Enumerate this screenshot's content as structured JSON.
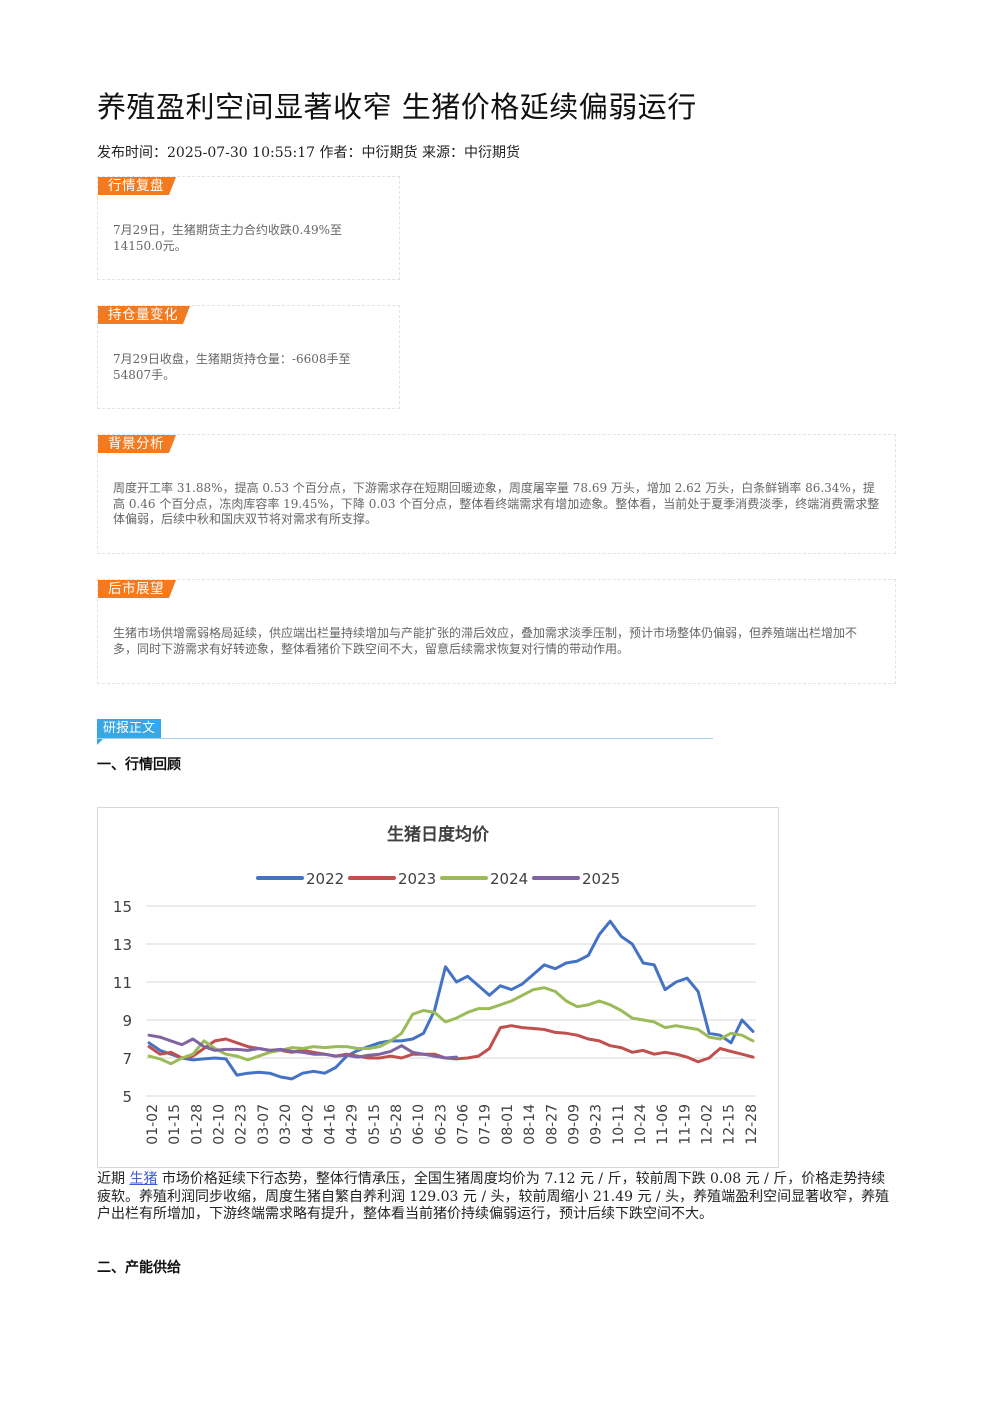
{
  "article": {
    "title": "养殖盈利空间显著收窄 生猪价格延续偏弱运行",
    "meta": "发布时间：2025-07-30 10:55:17 作者：中衍期货 来源：中衍期货"
  },
  "sections": {
    "review": {
      "tag": "行情复盘",
      "text": "7月29日，生猪期货主力合约收跌0.49%至14150.0元。"
    },
    "position": {
      "tag": "持仓量变化",
      "text": "7月29日收盘，生猪期货持仓量：-6608手至54807手。"
    },
    "background": {
      "tag": "背景分析",
      "text": "周度开工率 31.88%，提高 0.53 个百分点，下游需求存在短期回暖迹象，周度屠宰量 78.69 万头，增加 2.62 万头，白条鲜销率 86.34%，提高 0.46 个百分点，冻肉库容率 19.45%，下降 0.03 个百分点，整体看终端需求有增加迹象。整体看，当前处于夏季消费淡季，终端消费需求整体偏弱，后续中秋和国庆双节将对需求有所支撑。"
    },
    "outlook": {
      "tag": "后市展望",
      "text": "生猪市场供增需弱格局延续，供应端出栏量持续增加与产能扩张的滞后效应，叠加需求淡季压制，预计市场整体仍偏弱，但养殖端出栏增加不多，同时下游需求有好转迹象，整体看猪价下跌空间不大，留意后续需求恢复对行情的带动作用。"
    }
  },
  "report": {
    "tag": "研报正文",
    "heading1": "一、行情回顾",
    "para_prefix": "近期 ",
    "para_link": "生猪",
    "para_rest": " 市场价格延续下行态势，整体行情承压，全国生猪周度均价为 7.12 元 / 斤，较前周下跌 0.08 元 / 斤，价格走势持续疲软。养殖利润同步收缩，周度生猪自繁自养利润 129.03 元 / 头，较前周缩小 21.49 元 / 头，养殖端盈利空间显著收窄，养殖户出栏有所增加，下游终端需求略有提升，整体看当前猪价持续偏弱运行，预计后续下跌空间不大。",
    "heading2": "二、产能供给"
  },
  "chart_data": {
    "type": "line",
    "title": "生猪日度均价",
    "ylim": [
      5,
      15
    ],
    "yticks": [
      5,
      7,
      9,
      11,
      13,
      15
    ],
    "xticks": [
      "01-02",
      "01-15",
      "01-28",
      "02-10",
      "02-23",
      "03-07",
      "03-20",
      "04-02",
      "04-16",
      "04-29",
      "05-15",
      "05-28",
      "06-10",
      "06-23",
      "07-06",
      "07-19",
      "08-01",
      "08-14",
      "08-27",
      "09-09",
      "09-23",
      "10-11",
      "10-24",
      "11-06",
      "11-19",
      "12-02",
      "12-15",
      "12-28"
    ],
    "legend_position": "top",
    "grid": true,
    "series": [
      {
        "name": "2022",
        "color": "#4472c4",
        "values": [
          7.8,
          7.4,
          7.2,
          7.0,
          6.9,
          6.95,
          7.0,
          6.95,
          6.1,
          6.2,
          6.25,
          6.2,
          6.0,
          5.9,
          6.2,
          6.3,
          6.2,
          6.5,
          7.1,
          7.4,
          7.6,
          7.8,
          7.9,
          7.9,
          8.0,
          8.3,
          9.5,
          11.8,
          11.0,
          11.3,
          10.8,
          10.3,
          10.8,
          10.6,
          10.9,
          11.4,
          11.9,
          11.7,
          12.0,
          12.1,
          12.4,
          13.5,
          14.2,
          13.4,
          13.0,
          12.0,
          11.9,
          10.6,
          11.0,
          11.2,
          10.5,
          8.3,
          8.2,
          7.8,
          9.0,
          8.4
        ]
      },
      {
        "name": "2023",
        "color": "#c0504d",
        "values": [
          7.6,
          7.2,
          7.3,
          7.0,
          7.1,
          7.5,
          7.9,
          8.0,
          7.8,
          7.6,
          7.5,
          7.4,
          7.4,
          7.3,
          7.4,
          7.3,
          7.2,
          7.1,
          7.2,
          7.1,
          7.0,
          7.0,
          7.1,
          7.0,
          7.2,
          7.2,
          7.2,
          7.0,
          6.95,
          7.0,
          7.1,
          7.5,
          8.6,
          8.7,
          8.6,
          8.55,
          8.5,
          8.35,
          8.3,
          8.2,
          8.0,
          7.9,
          7.65,
          7.55,
          7.3,
          7.4,
          7.2,
          7.3,
          7.2,
          7.05,
          6.8,
          7.0,
          7.5,
          7.35,
          7.2,
          7.05
        ]
      },
      {
        "name": "2024",
        "color": "#9bbb59",
        "values": [
          7.1,
          6.95,
          6.7,
          7.0,
          7.2,
          7.9,
          7.5,
          7.2,
          7.1,
          6.9,
          7.1,
          7.3,
          7.4,
          7.55,
          7.5,
          7.6,
          7.55,
          7.6,
          7.6,
          7.5,
          7.5,
          7.6,
          7.9,
          8.3,
          9.3,
          9.5,
          9.4,
          8.9,
          9.1,
          9.4,
          9.6,
          9.6,
          9.8,
          10.0,
          10.3,
          10.6,
          10.7,
          10.5,
          10.0,
          9.7,
          9.8,
          10.0,
          9.8,
          9.5,
          9.1,
          9.0,
          8.9,
          8.6,
          8.7,
          8.6,
          8.5,
          8.1,
          8.0,
          8.3,
          8.2,
          7.9
        ]
      },
      {
        "name": "2025",
        "color": "#8064a2",
        "values": [
          8.2,
          8.1,
          7.9,
          7.7,
          8.0,
          7.6,
          7.4,
          7.45,
          7.45,
          7.4,
          7.5,
          7.4,
          7.45,
          7.35,
          7.3,
          7.2,
          7.2,
          7.1,
          7.15,
          7.05,
          7.15,
          7.2,
          7.35,
          7.65,
          7.3,
          7.2,
          7.1,
          7.0,
          7.05
        ]
      }
    ]
  }
}
